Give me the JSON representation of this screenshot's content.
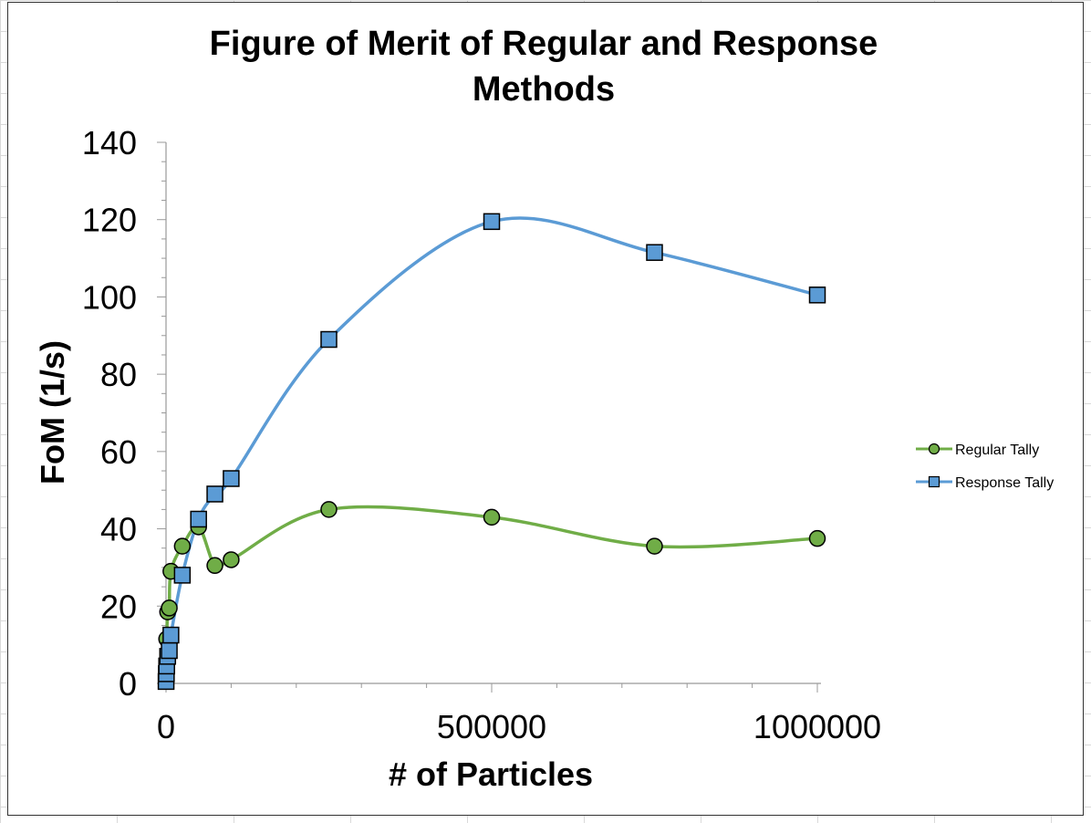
{
  "chart_data": {
    "type": "scatter",
    "title_lines": [
      "Figure of Merit of Regular and Response",
      "Methods"
    ],
    "xlabel": "# of Particles",
    "ylabel": "FoM (1/s)",
    "xlim": [
      0,
      1000000
    ],
    "ylim": [
      0,
      140
    ],
    "x_ticks": [
      "0",
      "500000",
      "1000000"
    ],
    "x_tick_values": [
      0,
      500000,
      1000000
    ],
    "y_ticks": [
      "0",
      "20",
      "40",
      "60",
      "80",
      "100",
      "120",
      "140"
    ],
    "y_tick_values": [
      0,
      20,
      40,
      60,
      80,
      100,
      120,
      140
    ],
    "legend_position": "right",
    "series": [
      {
        "name": "Regular Tally",
        "marker": "circle",
        "color": "#70ad47",
        "marker_fill": "#70ad47",
        "x": [
          1000,
          2500,
          5000,
          7500,
          25000,
          50000,
          75000,
          100000,
          250000,
          500000,
          750000,
          1000000
        ],
        "y": [
          11.5,
          18.5,
          19.5,
          29,
          35.5,
          40.5,
          30.5,
          32,
          45,
          43,
          35.5,
          37.5
        ]
      },
      {
        "name": "Response Tally",
        "marker": "square",
        "color": "#5b9bd5",
        "marker_fill": "#5b9bd5",
        "x": [
          100,
          500,
          1000,
          2500,
          5000,
          7500,
          25000,
          50000,
          75000,
          100000,
          250000,
          500000,
          750000,
          1000000
        ],
        "y": [
          0.5,
          2.5,
          4.5,
          7,
          8.5,
          12.5,
          28,
          42.5,
          49,
          53,
          89,
          119.5,
          111.5,
          100.5
        ]
      }
    ]
  }
}
